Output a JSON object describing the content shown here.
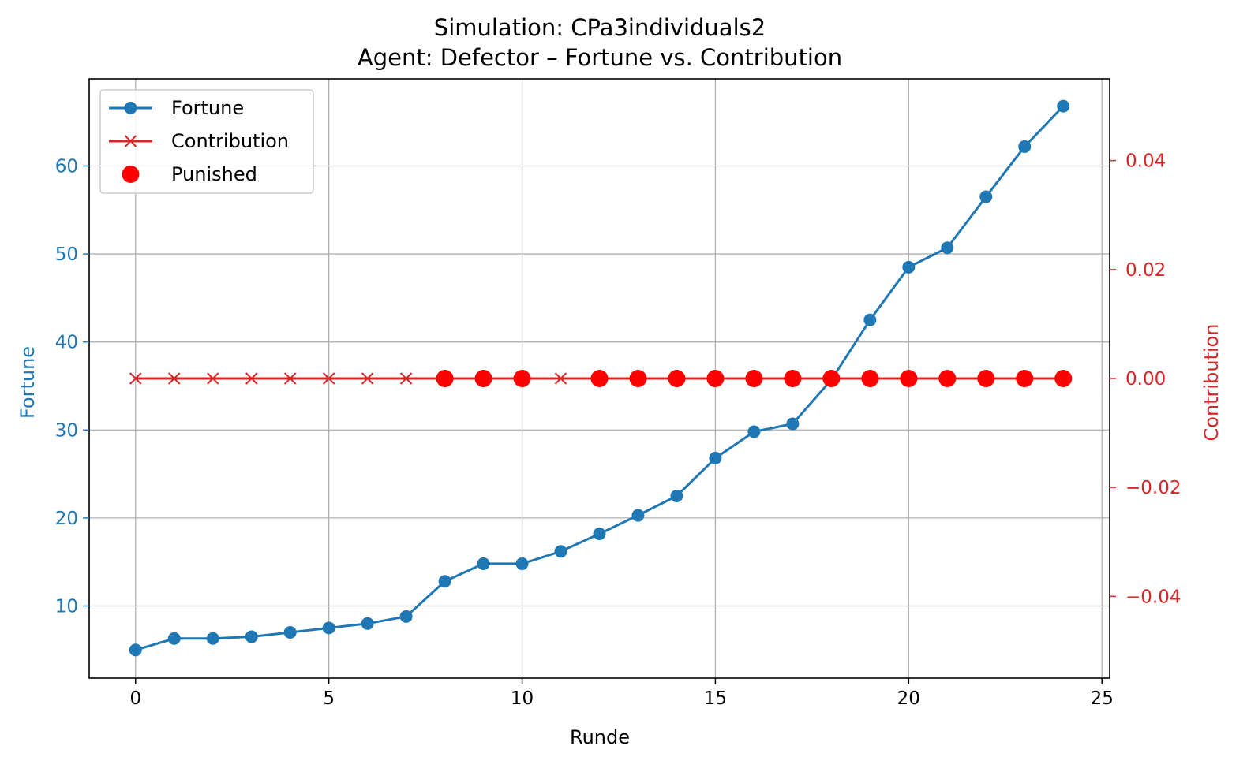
{
  "chart_data": {
    "type": "line",
    "title": "Simulation: CPa3individuals2",
    "subtitle": "Agent: Defector – Fortune vs. Contribution",
    "xlabel": "Runde",
    "ylabel": "Fortune",
    "y2label": "Contribution",
    "xlim": [
      -1.2,
      25.2
    ],
    "ylim": [
      1.8,
      69.9
    ],
    "y2lim": [
      -0.055,
      0.055
    ],
    "xticks": [
      "0",
      "5",
      "10",
      "15",
      "20",
      "25"
    ],
    "yticks": [
      "10",
      "20",
      "30",
      "40",
      "50",
      "60"
    ],
    "y2ticks": [
      "−0.04",
      "−0.02",
      "0.00",
      "0.02",
      "0.04"
    ],
    "grid": true,
    "legend_position": "top-left",
    "colors": {
      "fortune": "#1f77b4",
      "contribution": "#d62728",
      "punished": "#ff0000"
    },
    "x": [
      0,
      1,
      2,
      3,
      4,
      5,
      6,
      7,
      8,
      9,
      10,
      11,
      12,
      13,
      14,
      15,
      16,
      17,
      18,
      19,
      20,
      21,
      22,
      23,
      24
    ],
    "series": [
      {
        "name": "Fortune",
        "axis": "left",
        "marker": "circle",
        "values": [
          5.0,
          6.3,
          6.3,
          6.5,
          7.0,
          7.5,
          8.0,
          8.8,
          12.8,
          14.8,
          14.8,
          16.2,
          18.2,
          20.3,
          22.5,
          26.8,
          29.8,
          30.7,
          35.7,
          42.5,
          48.5,
          50.7,
          56.5,
          62.2,
          66.8
        ]
      },
      {
        "name": "Contribution",
        "axis": "right",
        "marker": "x",
        "values": [
          0,
          0,
          0,
          0,
          0,
          0,
          0,
          0,
          0,
          0,
          0,
          0,
          0,
          0,
          0,
          0,
          0,
          0,
          0,
          0,
          0,
          0,
          0,
          0,
          0
        ]
      },
      {
        "name": "Punished",
        "axis": "right",
        "marker": "dot",
        "x": [
          8,
          9,
          10,
          12,
          13,
          14,
          15,
          16,
          17,
          18,
          19,
          20,
          21,
          22,
          23,
          24
        ],
        "values": [
          0,
          0,
          0,
          0,
          0,
          0,
          0,
          0,
          0,
          0,
          0,
          0,
          0,
          0,
          0,
          0
        ]
      }
    ]
  }
}
